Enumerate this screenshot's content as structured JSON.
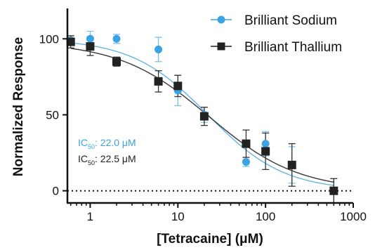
{
  "chart_data": {
    "type": "scatter",
    "xlabel": "[Tetracaine] (μM)",
    "ylabel": "Normalized Response",
    "x_scale": "log",
    "xlim": [
      0.55,
      1000
    ],
    "ylim": [
      -8,
      120
    ],
    "x_ticks": [
      1,
      10,
      100,
      1000
    ],
    "x_tick_labels": [
      "1",
      "10",
      "100",
      "1000"
    ],
    "y_ticks": [
      0,
      50,
      100
    ],
    "y_tick_labels": [
      "0",
      "50",
      "100"
    ],
    "reference_line": {
      "y": 0,
      "style": "dotted"
    },
    "legend_position": "top-right",
    "series": [
      {
        "name": "Brilliant Sodium",
        "marker": "circle",
        "color": "#3aa3e3",
        "x": [
          0.6,
          1,
          2,
          6,
          10,
          20,
          60,
          100,
          200,
          600
        ],
        "y": [
          99,
          100,
          100,
          93,
          66,
          50,
          19,
          31,
          17,
          0
        ],
        "error": [
          3,
          5,
          3,
          8,
          10,
          5,
          3,
          8,
          12,
          8
        ],
        "fit": {
          "ic50": 22.0,
          "top": 100,
          "bottom": 0,
          "hill": 1.0
        }
      },
      {
        "name": "Brilliant Thallium",
        "marker": "square",
        "color": "#222222",
        "x": [
          0.6,
          1,
          2,
          6,
          10,
          20,
          60,
          100,
          200,
          600
        ],
        "y": [
          98,
          95,
          85,
          72,
          69,
          49,
          31,
          26,
          17,
          0
        ],
        "error": [
          4,
          6,
          3,
          7,
          7,
          6,
          9,
          12,
          14,
          8
        ],
        "fit": {
          "ic50": 22.5,
          "top": 98,
          "bottom": 0,
          "hill": 0.85
        }
      }
    ],
    "annotations": [
      {
        "prefix": "IC",
        "subscript": "50",
        "value": ": 22.0 μM",
        "color": "#3aa3e3"
      },
      {
        "prefix": "IC",
        "subscript": "50",
        "value": ": 22.5 μM",
        "color": "#222222"
      }
    ]
  }
}
